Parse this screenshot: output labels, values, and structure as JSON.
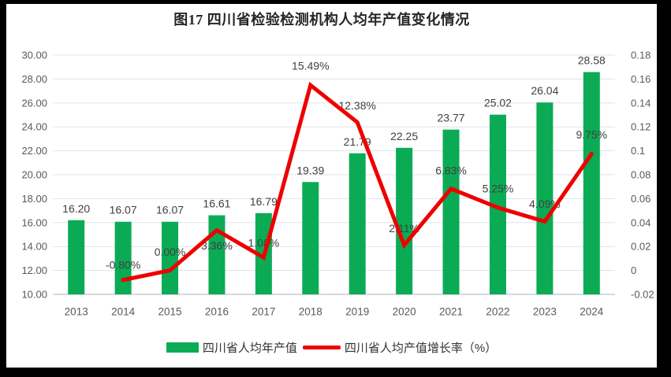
{
  "title": "图17  四川省检验检测机构人均年产值变化情况",
  "legend": {
    "items": [
      {
        "label": "四川省人均年产值",
        "swatch": "bar",
        "color": "#0bab55"
      },
      {
        "label": "四川省人均产值增长率（%）",
        "swatch": "line",
        "color": "#ee0000"
      }
    ]
  },
  "chart_data": {
    "type": "combo-bar-line",
    "title": "图17  四川省检验检测机构人均年产值变化情况",
    "categories": [
      "2013",
      "2014",
      "2015",
      "2016",
      "2017",
      "2018",
      "2019",
      "2020",
      "2021",
      "2022",
      "2023",
      "2024"
    ],
    "series": [
      {
        "name": "四川省人均年产值",
        "type": "bar",
        "axis": "left",
        "color": "#0bab55",
        "values": [
          16.2,
          16.07,
          16.07,
          16.61,
          16.79,
          19.39,
          21.79,
          22.25,
          23.77,
          25.02,
          26.04,
          28.58
        ],
        "labels": [
          "16.20",
          "16.07",
          "16.07",
          "16.61",
          "16.79",
          "19.39",
          "21.79",
          "22.25",
          "23.77",
          "25.02",
          "26.04",
          "28.58"
        ]
      },
      {
        "name": "四川省人均产值增长率（%）",
        "type": "line",
        "axis": "right",
        "color": "#ee0000",
        "values": [
          null,
          -0.008,
          0.0,
          0.0336,
          0.0108,
          0.1549,
          0.1238,
          0.0211,
          0.0683,
          0.0525,
          0.0409,
          0.0975
        ],
        "labels": [
          null,
          "-0.80%",
          "0.00%",
          "3.36%",
          "1.08%",
          "15.49%",
          "12.38%",
          "2.11%",
          "6.83%",
          "5.25%",
          "4.09%",
          "9.75%"
        ]
      }
    ],
    "left_axis": {
      "min": 10,
      "max": 30,
      "tick_labels": [
        "10.00",
        "12.00",
        "14.00",
        "16.00",
        "18.00",
        "20.00",
        "22.00",
        "24.00",
        "26.00",
        "28.00",
        "30.00"
      ]
    },
    "right_axis": {
      "min": -0.02,
      "max": 0.18,
      "tick_labels": [
        "-0.02",
        "0",
        "0.02",
        "0.04",
        "0.06",
        "0.08",
        "0.1",
        "0.12",
        "0.14",
        "0.16",
        "0.18"
      ]
    },
    "grid": true,
    "legend_position": "bottom",
    "gridline_color": "#dde3ea",
    "baseline_color": "#c9ced6"
  }
}
